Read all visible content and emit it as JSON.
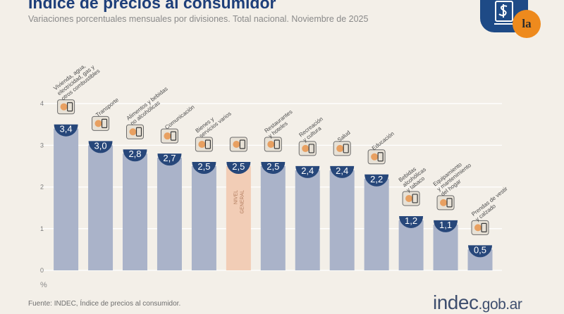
{
  "header": {
    "title": "Índice de precios al consumidor",
    "subtitle": "Variaciones porcentuales mensuales por divisiones. Total nacional. Noviembre de 2025"
  },
  "badge": {
    "mark": "la",
    "icons": [
      "dollar-sign-icon",
      "speech-bubble-icon"
    ]
  },
  "footer": {
    "source": "Fuente: INDEC, Índice de precios al consumidor.",
    "logo_main": "indec",
    "logo_suffix": ".gob.ar"
  },
  "colors": {
    "bar": "#aab3c9",
    "highlight_bar": "#f2cdb6",
    "circle": "#27477a",
    "grid": "#ffffff",
    "title": "#1e3f7a"
  },
  "chart_data": {
    "type": "bar",
    "title": "Índice de precios al consumidor",
    "ylabel": "%",
    "ylim": [
      0,
      4
    ],
    "yticks": [
      0,
      1,
      2,
      3,
      4
    ],
    "grid": true,
    "categories": [
      {
        "name": [
          "Vivienda, agua,",
          "electricidad, gas y",
          "otros combustibles"
        ],
        "value": 3.4,
        "label": "3,4",
        "icon": "house-bulb-icon"
      },
      {
        "name": [
          "Transporte"
        ],
        "value": 3.0,
        "label": "3,0",
        "icon": "bus-icon"
      },
      {
        "name": [
          "Alimentos y bebidas",
          "no alcohólicas"
        ],
        "value": 2.8,
        "label": "2,8",
        "icon": "food-icon"
      },
      {
        "name": [
          "Comunicación"
        ],
        "value": 2.7,
        "label": "2,7",
        "icon": "phone-icon"
      },
      {
        "name": [
          "Bienes y",
          "servicios varios"
        ],
        "value": 2.5,
        "label": "2,5",
        "icon": "comb-icon"
      },
      {
        "name": [
          "NIVEL",
          "GENERAL"
        ],
        "value": 2.5,
        "label": "2,5",
        "icon": "mixed-goods-icon",
        "highlight": true
      },
      {
        "name": [
          "Restaurantes",
          "y hoteles"
        ],
        "value": 2.5,
        "label": "2,5",
        "icon": "cutlery-icon"
      },
      {
        "name": [
          "Recreación",
          "y cultura"
        ],
        "value": 2.4,
        "label": "2,4",
        "icon": "umbrella-icon"
      },
      {
        "name": [
          "Salud"
        ],
        "value": 2.4,
        "label": "2,4",
        "icon": "medical-cross-icon"
      },
      {
        "name": [
          "Educación"
        ],
        "value": 2.2,
        "label": "2,2",
        "icon": "notebook-icon"
      },
      {
        "name": [
          "Bebidas",
          "alcohólicas",
          "y tabaco"
        ],
        "value": 1.2,
        "label": "1,2",
        "icon": "bottle-icon"
      },
      {
        "name": [
          "Equipamiento",
          "y mantenimiento",
          "del hogar"
        ],
        "value": 1.1,
        "label": "1,1",
        "icon": "lamp-icon"
      },
      {
        "name": [
          "Prendas de vestir",
          "y calzado"
        ],
        "value": 0.5,
        "label": "0,5",
        "icon": "shoe-icon"
      }
    ]
  }
}
